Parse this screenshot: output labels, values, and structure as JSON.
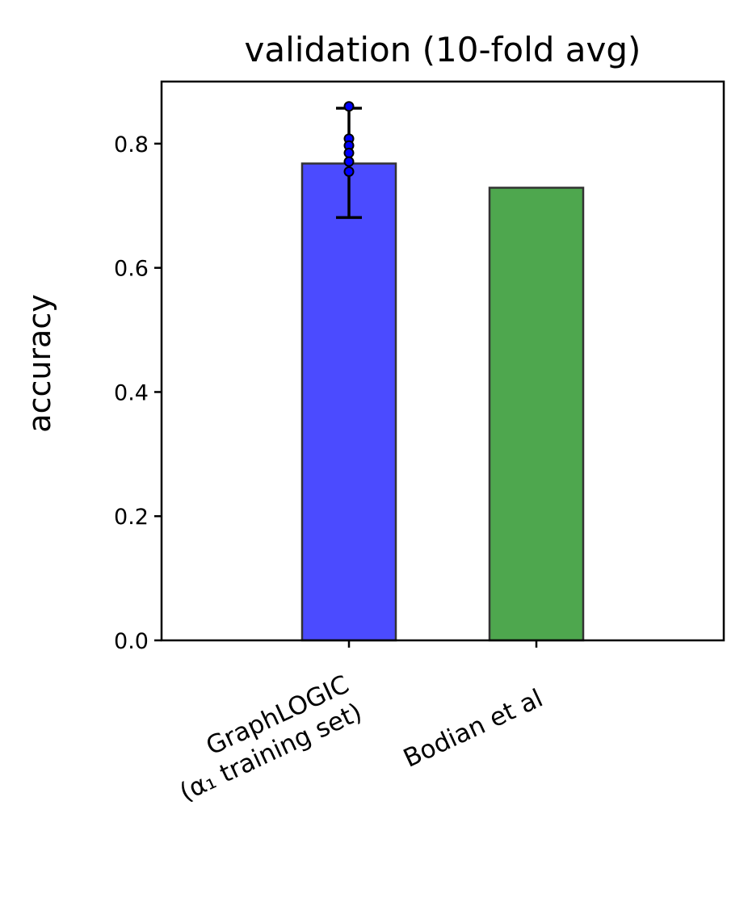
{
  "chart_data": {
    "type": "bar",
    "title": "validation (10-fold avg)",
    "xlabel": "",
    "ylabel": "accuracy",
    "ylim": [
      0,
      0.9
    ],
    "yticks": [
      0.0,
      0.2,
      0.4,
      0.6,
      0.8
    ],
    "ytick_labels": [
      "0.0",
      "0.2",
      "0.4",
      "0.6",
      "0.8"
    ],
    "categories": [
      "GraphLOGIC\n(α₁ training set)",
      "Bodian et al"
    ],
    "values": [
      0.768,
      0.729
    ],
    "colors": [
      "#4b4bff",
      "#4ea74e"
    ],
    "error_bars": [
      {
        "category_index": 0,
        "low": 0.681,
        "high": 0.857
      }
    ],
    "fold_points": [
      {
        "category_index": 0,
        "values": [
          0.86,
          0.808,
          0.797,
          0.785,
          0.771,
          0.755
        ]
      }
    ],
    "grid": false,
    "legend": "none"
  }
}
